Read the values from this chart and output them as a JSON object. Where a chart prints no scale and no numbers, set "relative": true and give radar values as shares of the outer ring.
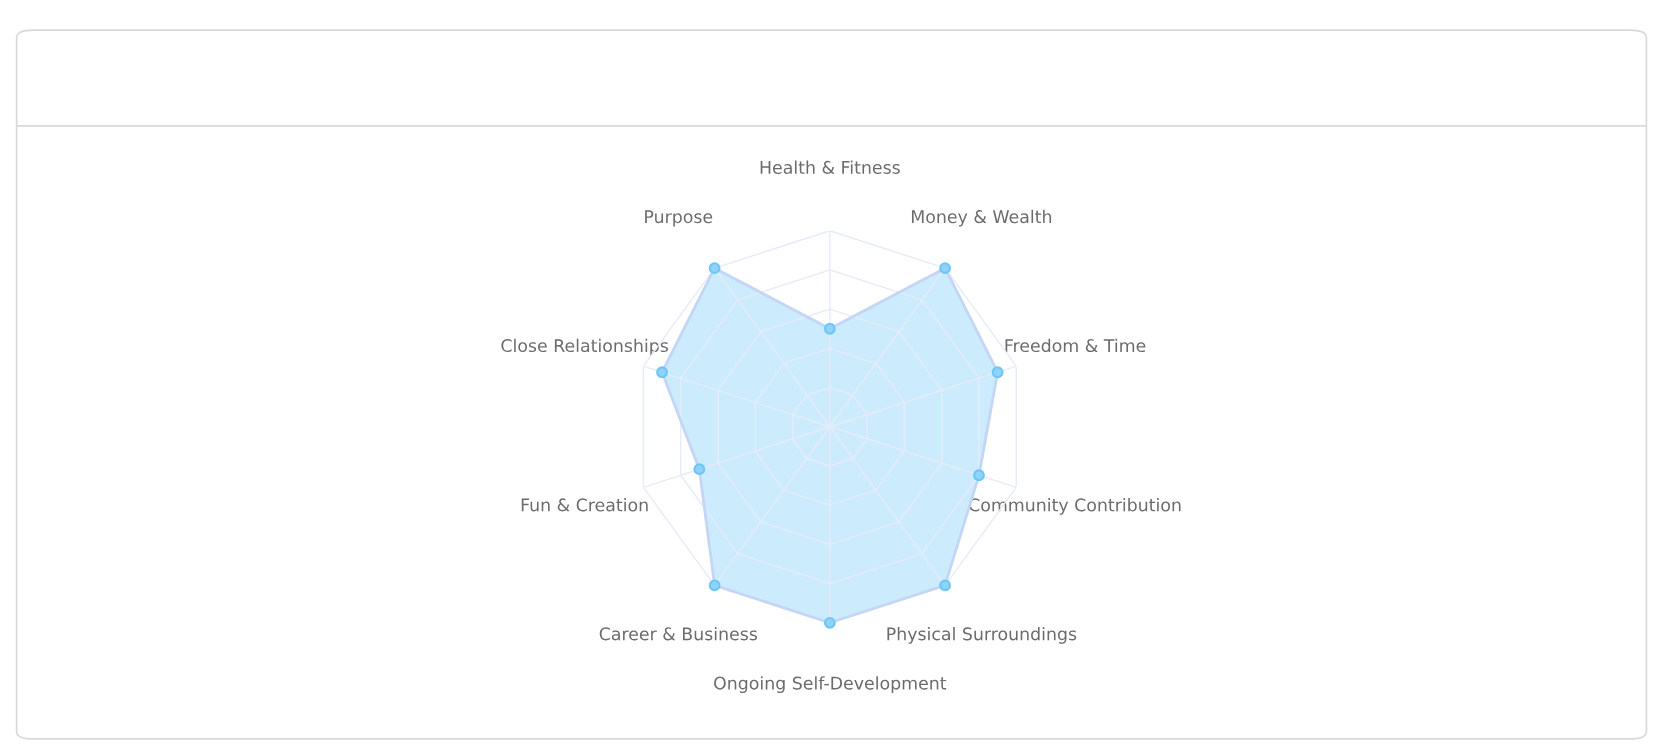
{
  "chart_data": {
    "type": "radar",
    "relative": true,
    "grid": true,
    "marker": "circle",
    "categories": [
      "Health & Fitness",
      "Money & Wealth",
      "Freedom & Time",
      "Community Contribution",
      "Physical Surroundings",
      "Ongoing Self-Development",
      "Career & Business",
      "Fun & Creation",
      "Close Relationships",
      "Purpose"
    ],
    "series": [
      {
        "color": "#8fd3fb",
        "values": [
          0.5,
          1.0,
          0.9,
          0.8,
          1.0,
          1.0,
          1.0,
          0.7,
          0.9,
          1.0
        ]
      }
    ]
  }
}
